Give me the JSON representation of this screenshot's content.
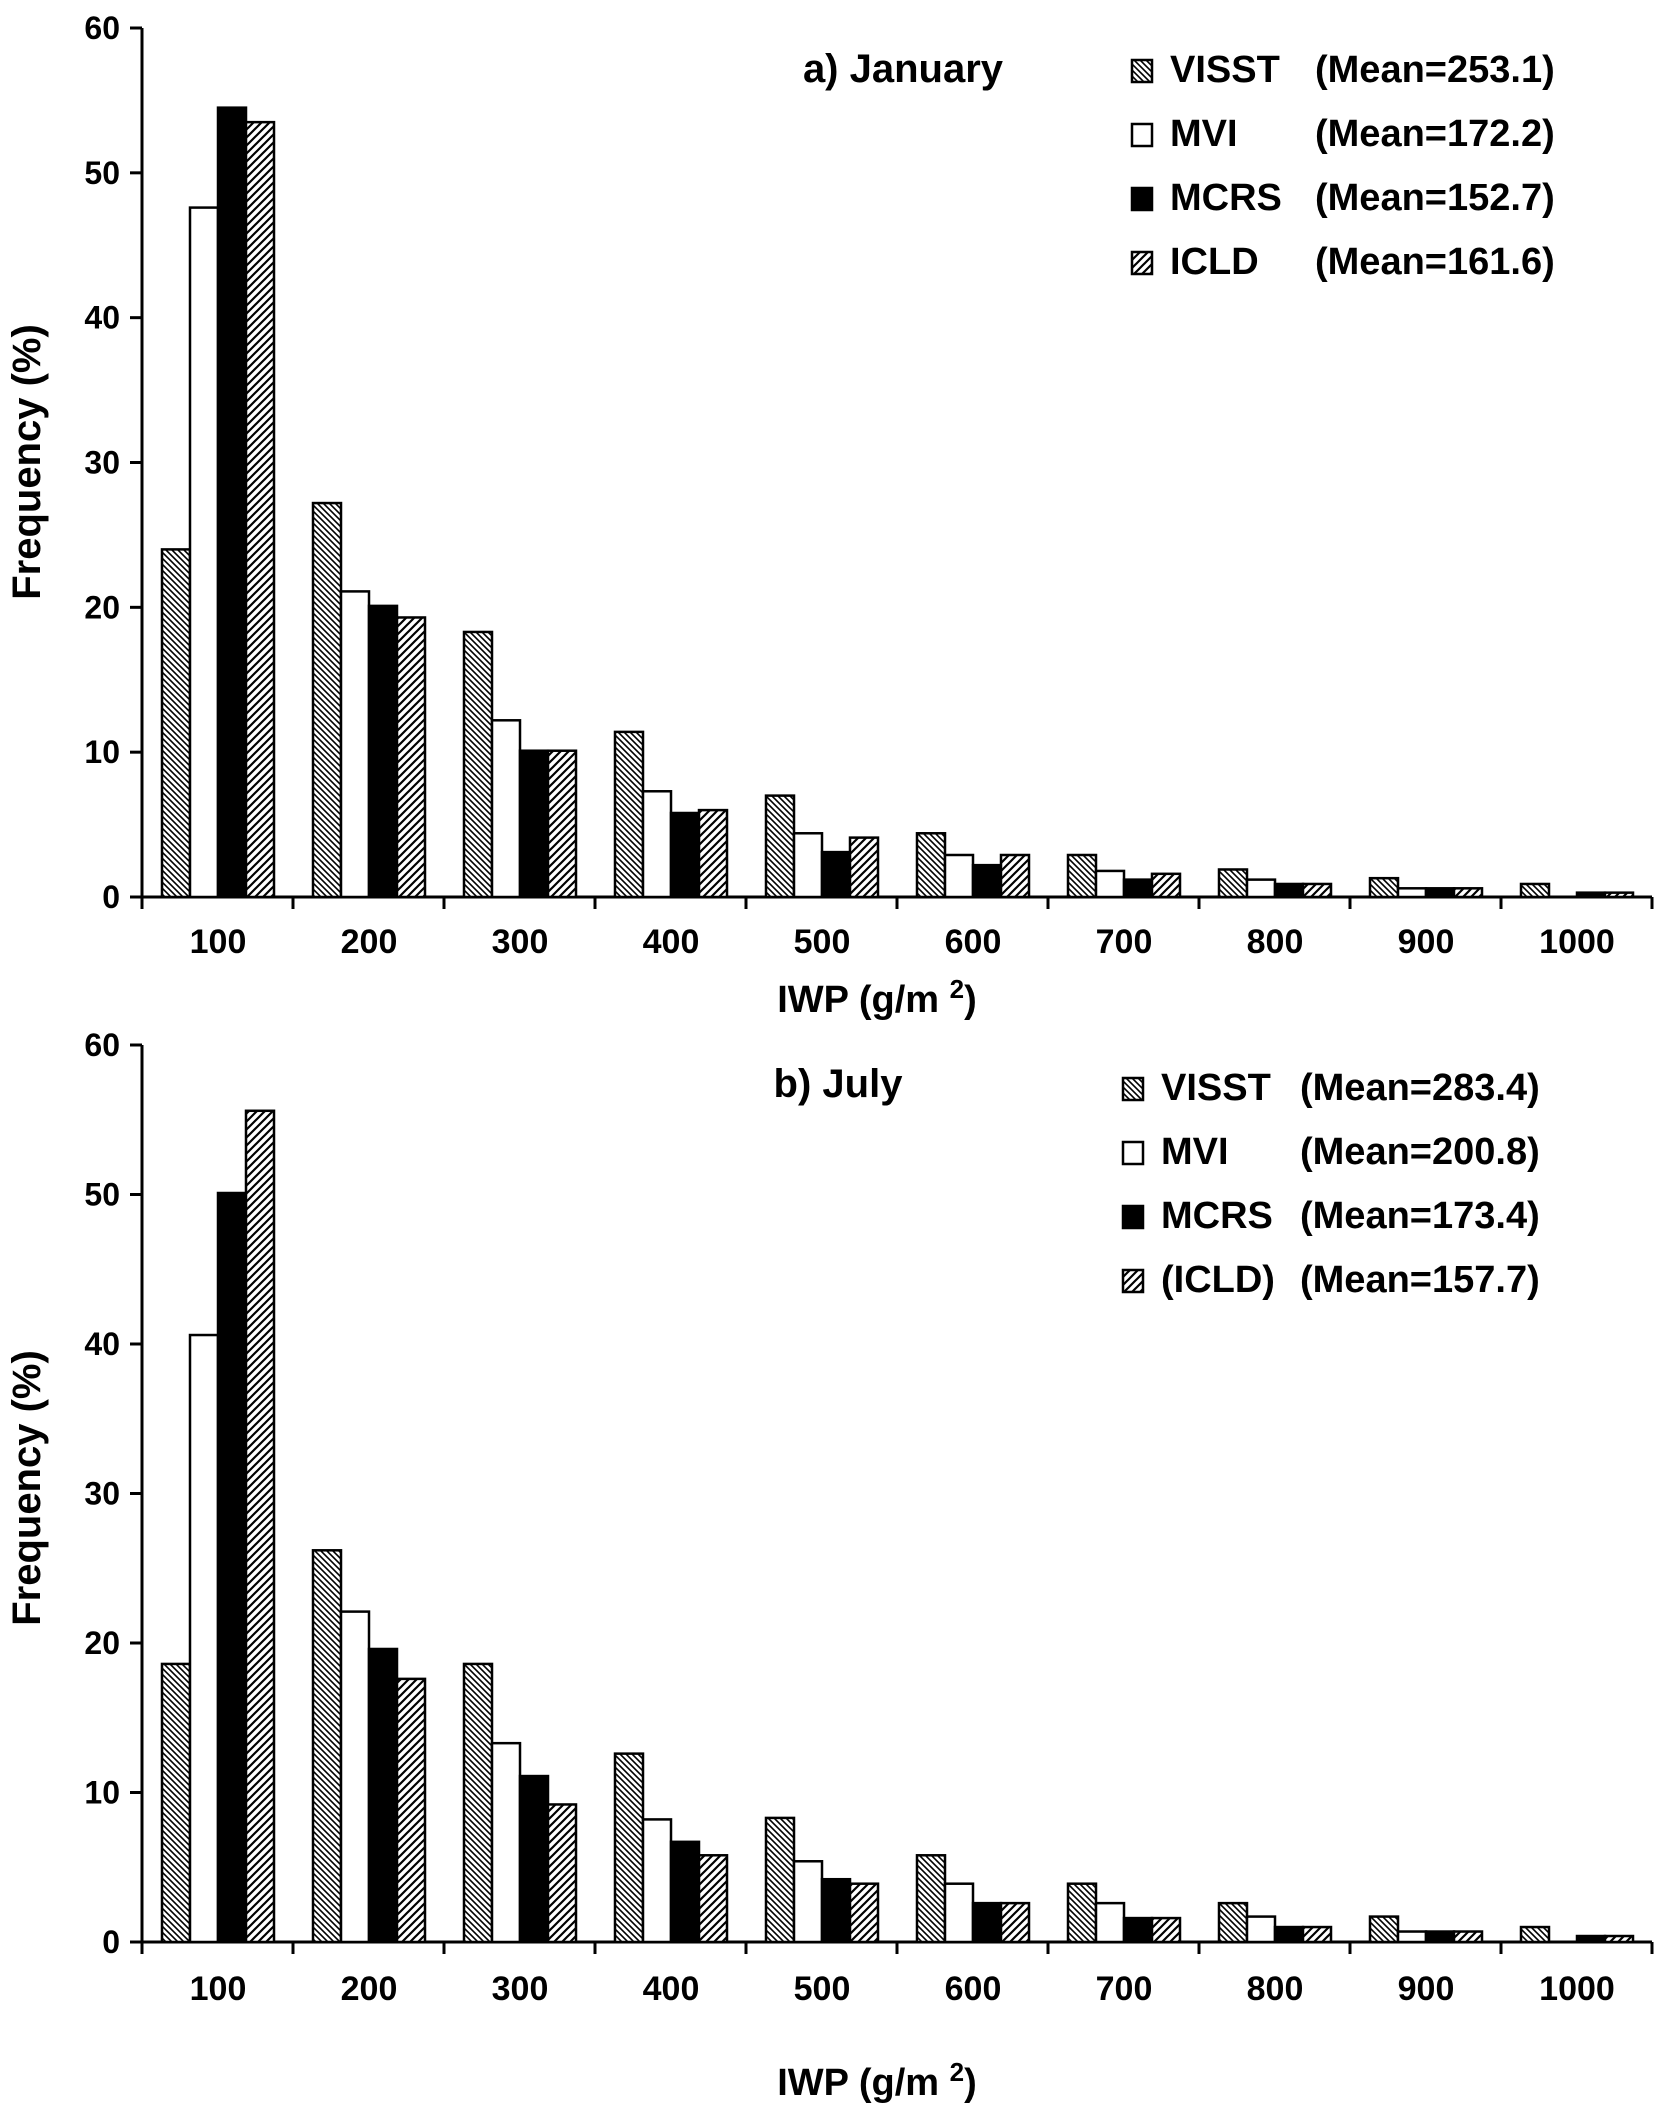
{
  "chart_data": [
    {
      "type": "bar",
      "title": "a) January",
      "xlabel": "IWP (g/m",
      "xlabel_sup": "2",
      "xlabel_tail": ")",
      "ylabel": "Frequency (%)",
      "ylim": [
        0,
        60
      ],
      "yticks": [
        0,
        10,
        20,
        30,
        40,
        50,
        60
      ],
      "categories": [
        "100",
        "200",
        "300",
        "400",
        "500",
        "600",
        "700",
        "800",
        "900",
        "1000"
      ],
      "legend_position": "top-right",
      "series": [
        {
          "name": "VISST",
          "legend_mean": "(Mean=253.1)",
          "pattern": "hatch-back",
          "values": [
            24.0,
            27.2,
            18.3,
            11.4,
            7.0,
            4.4,
            2.9,
            1.9,
            1.3,
            0.9
          ]
        },
        {
          "name": "MVI",
          "legend_mean": "(Mean=172.2)",
          "pattern": "white",
          "values": [
            47.6,
            21.1,
            12.2,
            7.3,
            4.4,
            2.9,
            1.8,
            1.2,
            0.6,
            0.0
          ]
        },
        {
          "name": "MCRS",
          "legend_mean": "(Mean=152.7)",
          "pattern": "black",
          "values": [
            54.5,
            20.1,
            10.1,
            5.8,
            3.1,
            2.2,
            1.2,
            0.9,
            0.6,
            0.3
          ]
        },
        {
          "name": "ICLD",
          "legend_mean": "(Mean=161.6)",
          "pattern": "hatch-fwd",
          "values": [
            53.5,
            19.3,
            10.1,
            6.0,
            4.1,
            2.9,
            1.6,
            0.9,
            0.6,
            0.3
          ]
        }
      ]
    },
    {
      "type": "bar",
      "title": "b) July",
      "xlabel": "IWP (g/m",
      "xlabel_sup": "2",
      "xlabel_tail": ")",
      "ylabel": "Frequency (%)",
      "ylim": [
        0,
        60
      ],
      "yticks": [
        0,
        10,
        20,
        30,
        40,
        50,
        60
      ],
      "categories": [
        "100",
        "200",
        "300",
        "400",
        "500",
        "600",
        "700",
        "800",
        "900",
        "1000"
      ],
      "legend_position": "top-right",
      "series": [
        {
          "name": "VISST",
          "legend_mean": "(Mean=283.4)",
          "pattern": "hatch-back",
          "values": [
            18.6,
            26.2,
            18.6,
            12.6,
            8.3,
            5.8,
            3.9,
            2.6,
            1.7,
            1.0
          ]
        },
        {
          "name": "MVI",
          "legend_mean": "(Mean=200.8)",
          "pattern": "white",
          "values": [
            40.6,
            22.1,
            13.3,
            8.2,
            5.4,
            3.9,
            2.6,
            1.7,
            0.7,
            0.0
          ]
        },
        {
          "name": "MCRS",
          "legend_mean": "(Mean=173.4)",
          "pattern": "black",
          "values": [
            50.1,
            19.6,
            11.1,
            6.7,
            4.2,
            2.6,
            1.6,
            1.0,
            0.7,
            0.4
          ]
        },
        {
          "name": "(ICLD)",
          "legend_mean": "(Mean=157.7)",
          "pattern": "hatch-fwd",
          "values": [
            55.6,
            17.6,
            9.2,
            5.8,
            3.9,
            2.6,
            1.6,
            1.0,
            0.7,
            0.4
          ]
        }
      ]
    }
  ]
}
